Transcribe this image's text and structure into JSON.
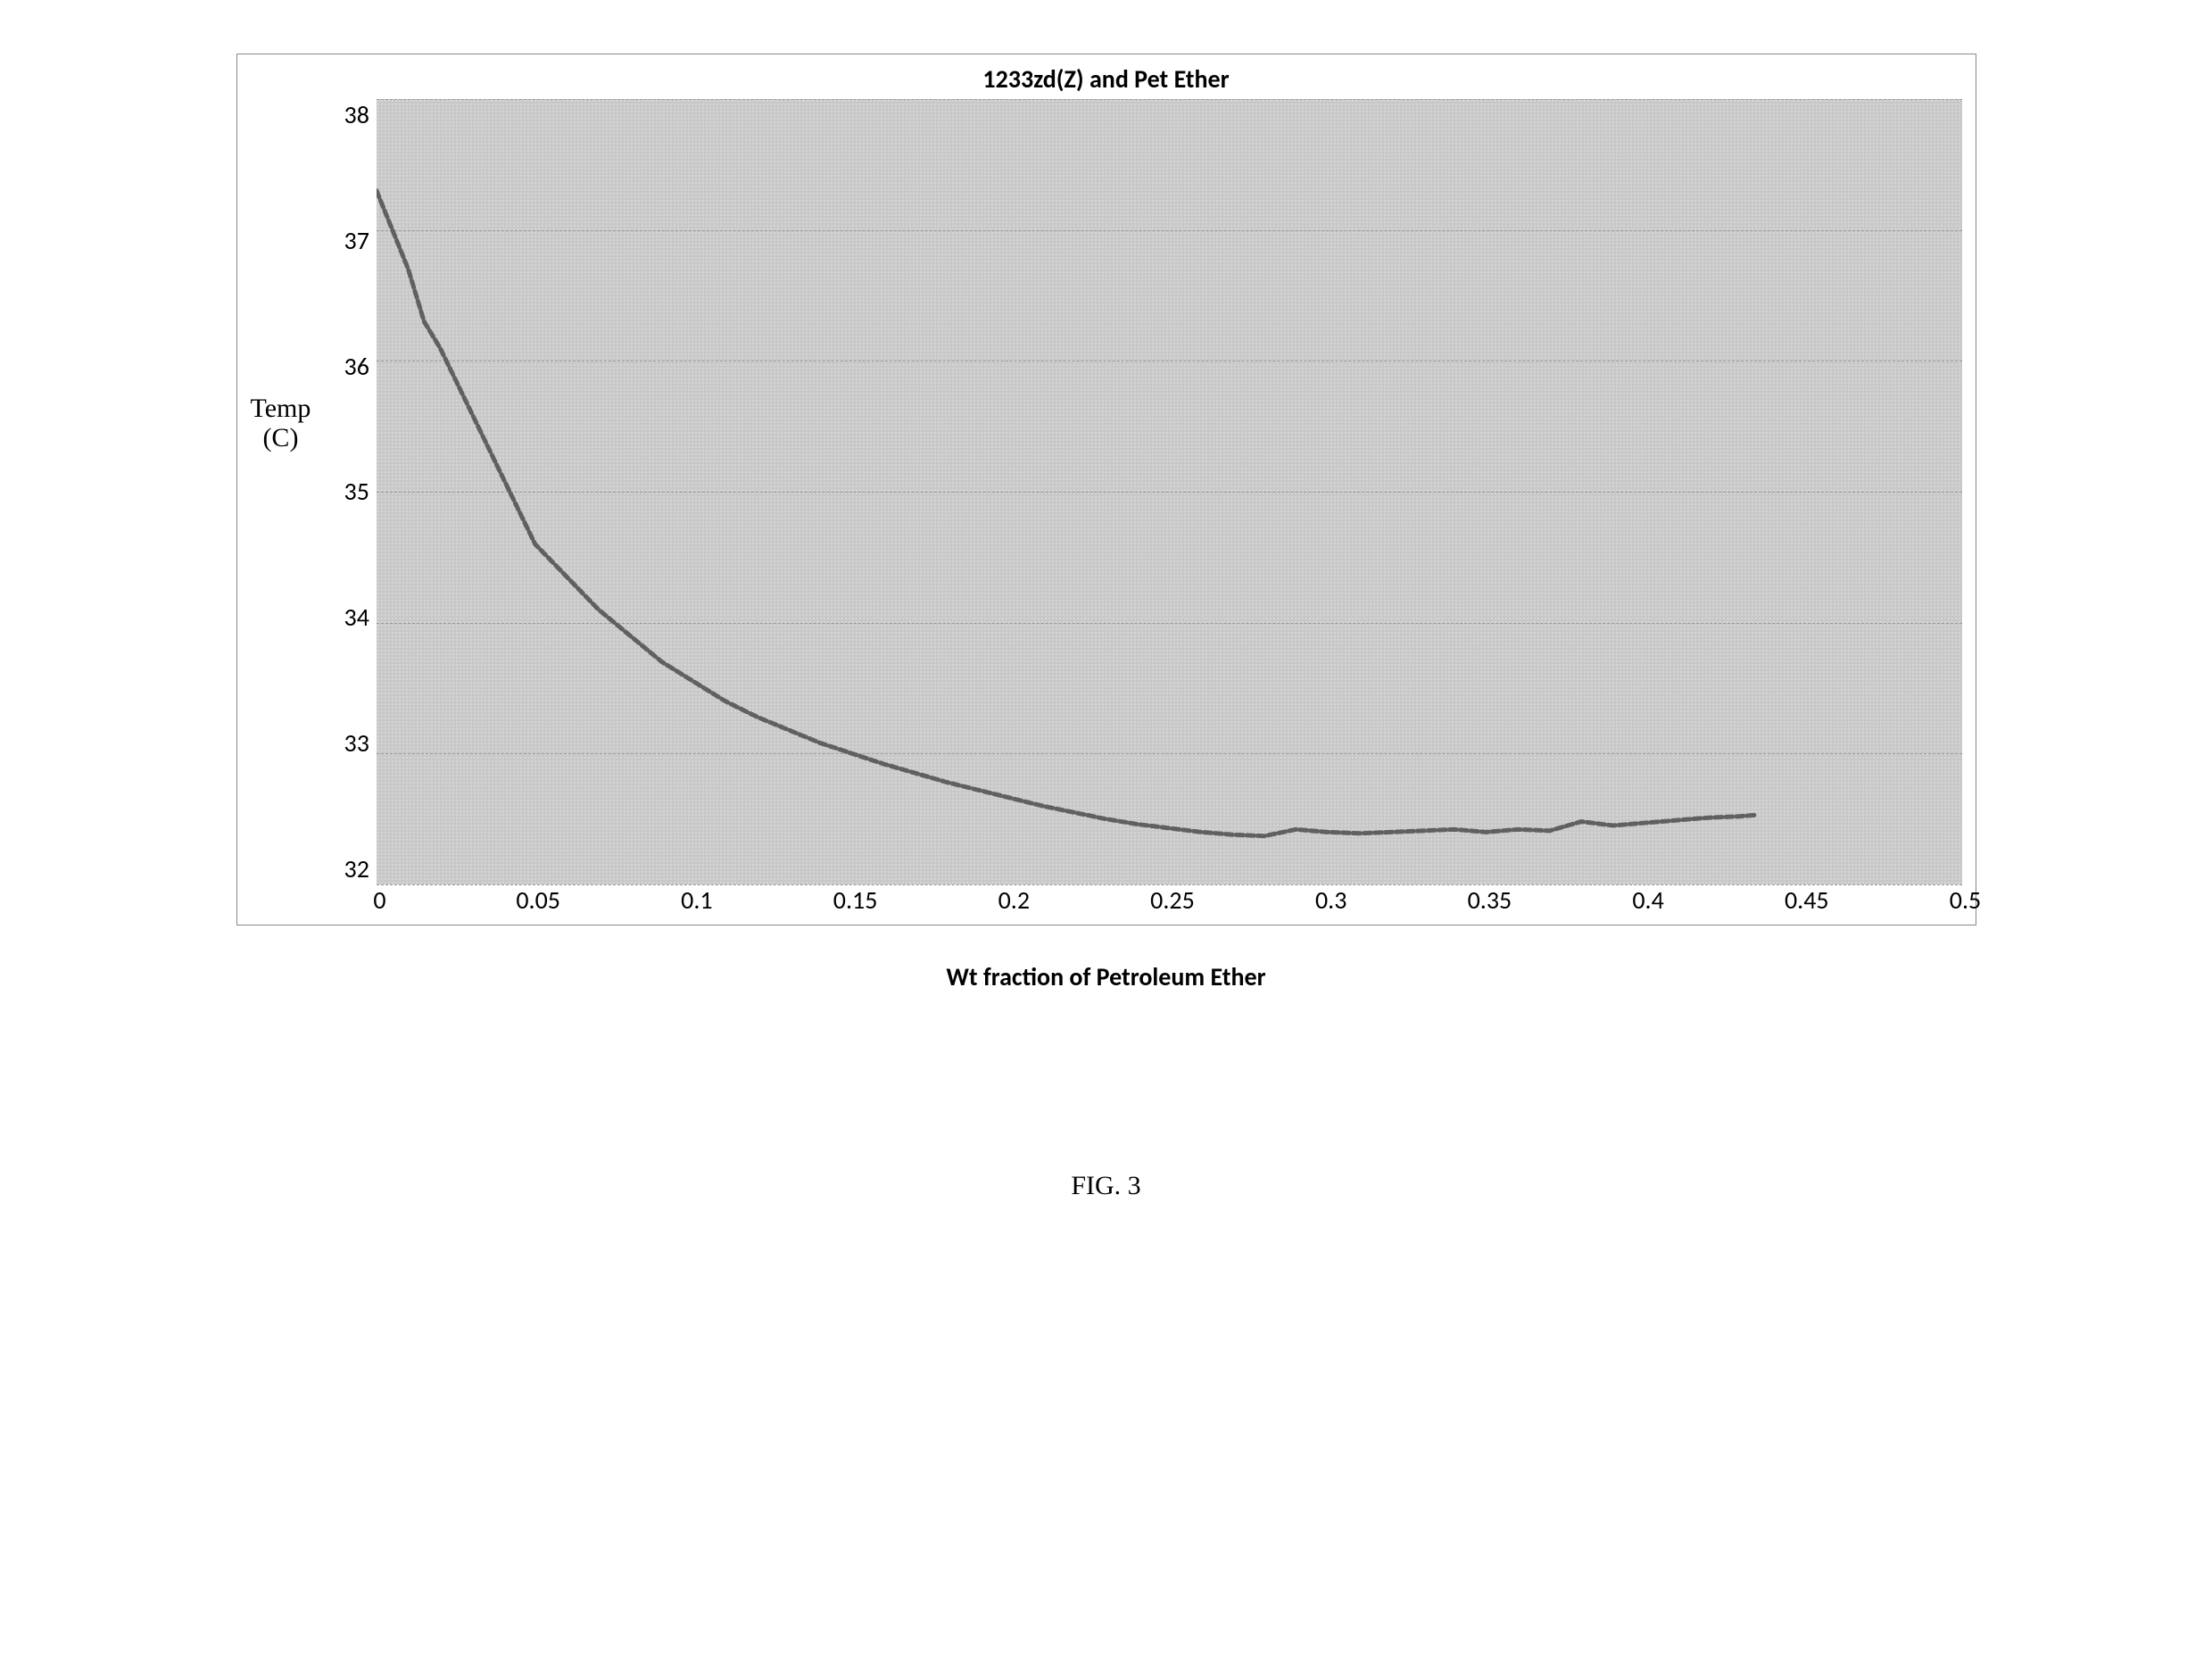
{
  "chart": {
    "type": "line",
    "title": "1233zd(Z) and Pet Ether",
    "title_fontsize": 28,
    "title_weight": "bold",
    "y_axis_label_line1": "Temp",
    "y_axis_label_line2": "(C)",
    "y_axis_label_fontfamily": "Times New Roman",
    "y_axis_label_fontsize": 30,
    "x_axis_label": "Wt fraction of Petroleum Ether",
    "x_axis_label_fontsize": 28,
    "x_axis_label_weight": "bold",
    "figure_caption": "FIG. 3",
    "figure_caption_fontfamily": "Times New Roman",
    "figure_caption_fontsize": 30,
    "xlim": [
      0,
      0.5
    ],
    "ylim": [
      32,
      38
    ],
    "x_ticks": [
      "0",
      "0.05",
      "0.1",
      "0.15",
      "0.2",
      "0.25",
      "0.3",
      "0.35",
      "0.4",
      "0.45",
      "0.5"
    ],
    "y_ticks": [
      "38",
      "37",
      "36",
      "35",
      "34",
      "33",
      "32"
    ],
    "y_grid": true,
    "x_grid": false,
    "grid_color": "#999999",
    "grid_style": "dashed",
    "plot_background_color": "#c8c8c8",
    "plot_dot_pattern": true,
    "line_color": "#606060",
    "line_width": 5,
    "line_dash": "8,4",
    "border_color": "#888888",
    "data": {
      "x": [
        0,
        0.005,
        0.01,
        0.015,
        0.02,
        0.025,
        0.03,
        0.035,
        0.04,
        0.045,
        0.05,
        0.06,
        0.07,
        0.08,
        0.09,
        0.1,
        0.11,
        0.12,
        0.13,
        0.14,
        0.15,
        0.16,
        0.17,
        0.18,
        0.19,
        0.2,
        0.21,
        0.22,
        0.23,
        0.24,
        0.25,
        0.26,
        0.27,
        0.28,
        0.29,
        0.3,
        0.31,
        0.32,
        0.33,
        0.34,
        0.35,
        0.36,
        0.37,
        0.38,
        0.39,
        0.4,
        0.41,
        0.42,
        0.43,
        0.435
      ],
      "y": [
        37.3,
        37.0,
        36.7,
        36.3,
        36.1,
        35.85,
        35.6,
        35.35,
        35.1,
        34.85,
        34.6,
        34.35,
        34.1,
        33.9,
        33.7,
        33.55,
        33.4,
        33.28,
        33.18,
        33.08,
        33.0,
        32.92,
        32.85,
        32.78,
        32.72,
        32.66,
        32.6,
        32.55,
        32.5,
        32.46,
        32.43,
        32.4,
        32.38,
        32.37,
        32.42,
        32.4,
        32.39,
        32.4,
        32.41,
        32.42,
        32.4,
        32.42,
        32.41,
        32.48,
        32.45,
        32.47,
        32.49,
        32.51,
        32.52,
        32.53
      ]
    }
  }
}
